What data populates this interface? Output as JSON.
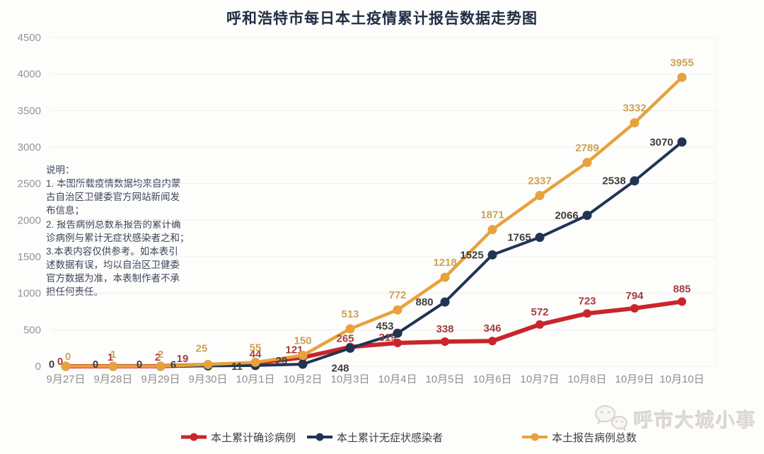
{
  "title": "呼和浩特市每日本土疫情累计报告数据走势图",
  "note": "说明：\n1. 本图所载疫情数据均来自内蒙\n古自治区卫健委官方网站新闻发\n布信息；\n2. 报告病例总数系报告的累计确\n诊病例与累计无症状感染者之和；\n3.本表内容仅供参考。如本表引\n述数据有误，均以自治区卫健委\n官方数据为准，本表制作者不承\n担任何责任。",
  "watermark": {
    "text": "呼市大城小事",
    "icon": "wechat-bubbles-icon"
  },
  "colors": {
    "confirmed_line": "#c9252b",
    "asymptomatic_line": "#203454",
    "total_line": "#e7a23c",
    "confirmed_label": "#a33d3f",
    "asymptomatic_label": "#3f3e3c",
    "total_label": "#cfa254",
    "axis_text": "#949494",
    "grid": "#f0eeea"
  },
  "chart_data": {
    "type": "line",
    "title": "呼和浩特市每日本土疫情累计报告数据走势图",
    "categories": [
      "9月27日",
      "9月28日",
      "9月29日",
      "9月30日",
      "10月1日",
      "10月2日",
      "10月3日",
      "10月4日",
      "10月5日",
      "10月6日",
      "10月7日",
      "10月8日",
      "10月9日",
      "10月10日"
    ],
    "series": [
      {
        "name": "本土累计确诊病例",
        "color": "#c9252b",
        "label_color": "#a33d3f",
        "values": [
          0,
          1,
          2,
          19,
          44,
          121,
          265,
          319,
          338,
          346,
          572,
          723,
          794,
          885
        ]
      },
      {
        "name": "本土累计无症状感染者",
        "color": "#203454",
        "label_color": "#3f3e3c",
        "values": [
          0,
          0,
          0,
          6,
          11,
          29,
          248,
          453,
          880,
          1525,
          1765,
          2066,
          2538,
          3070
        ]
      },
      {
        "name": "本土报告病例总数",
        "color": "#e7a23c",
        "label_color": "#cfa254",
        "values": [
          0,
          1,
          2,
          25,
          55,
          150,
          513,
          772,
          1218,
          1871,
          2337,
          2789,
          3332,
          3955
        ]
      }
    ],
    "ylim": [
      0,
      4500
    ],
    "yticks": [
      0,
      500,
      1000,
      1500,
      2000,
      2500,
      3000,
      3500,
      4000,
      4500
    ],
    "grid": "horizontal-faint",
    "legend_position": "bottom",
    "point_markers": true,
    "data_labels": true
  }
}
